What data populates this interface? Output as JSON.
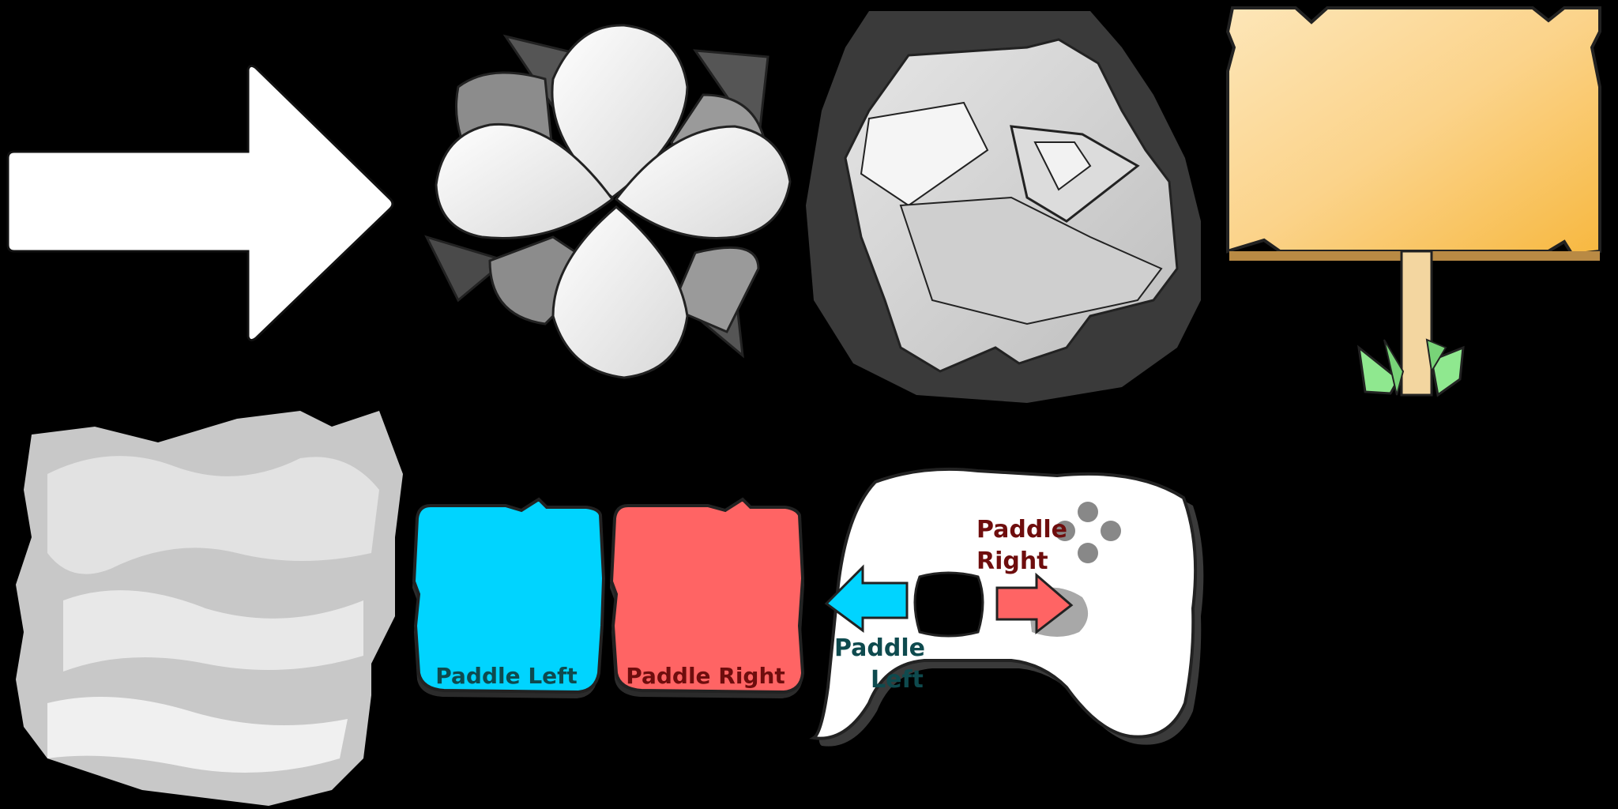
{
  "sprites": {
    "arrow": {
      "icon": "right-arrow-icon"
    },
    "flower": {
      "icon": "flower-icon"
    },
    "rock": {
      "icon": "rock-icon"
    },
    "signpost": {
      "icon": "signpost-icon"
    },
    "chalk": {
      "icon": "chalk-smudge-icon"
    },
    "paddle_left_card": {
      "icon": "paddle-left-card-icon",
      "label": "Paddle Left",
      "color": "#00d4ff",
      "text_color": "#0e4a4e"
    },
    "paddle_right_card": {
      "icon": "paddle-right-card-icon",
      "label": "Paddle Right",
      "color": "#ff6464",
      "text_color": "#6e0d0d"
    },
    "controller": {
      "icon": "gamepad-icon",
      "right_label_line1": "Paddle",
      "right_label_line2": "Right",
      "left_label_line1": "Paddle",
      "left_label_line2": "Left",
      "left_arrow_color": "#00d4ff",
      "right_arrow_color": "#ff6464",
      "left_text_color": "#0e4a4e",
      "right_text_color": "#6e0d0d"
    }
  }
}
